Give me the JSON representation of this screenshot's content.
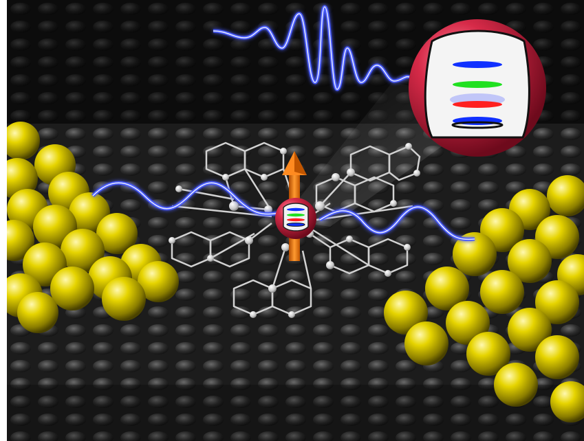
{
  "scene": {
    "kind": "molecular-spin-transistor-illustration",
    "colors": {
      "gold": "#d8c800",
      "gold_highlight": "#fff7a0",
      "gold_shadow": "#5e5400",
      "graphene_surface": "#2a2a2a",
      "molecule_bond": "#cfcfcf",
      "molecule_atom": "#e8e8e8",
      "ion_sphere": "#c81e3c",
      "spin_arrow": "#ff7a00",
      "wave": "#3a4dff",
      "level_blue": "#1030ff",
      "level_green": "#20e020",
      "level_red": "#ff2020",
      "level_black": "#111111"
    },
    "icons": [
      "spin-arrow-icon",
      "energy-level-diagram"
    ]
  }
}
